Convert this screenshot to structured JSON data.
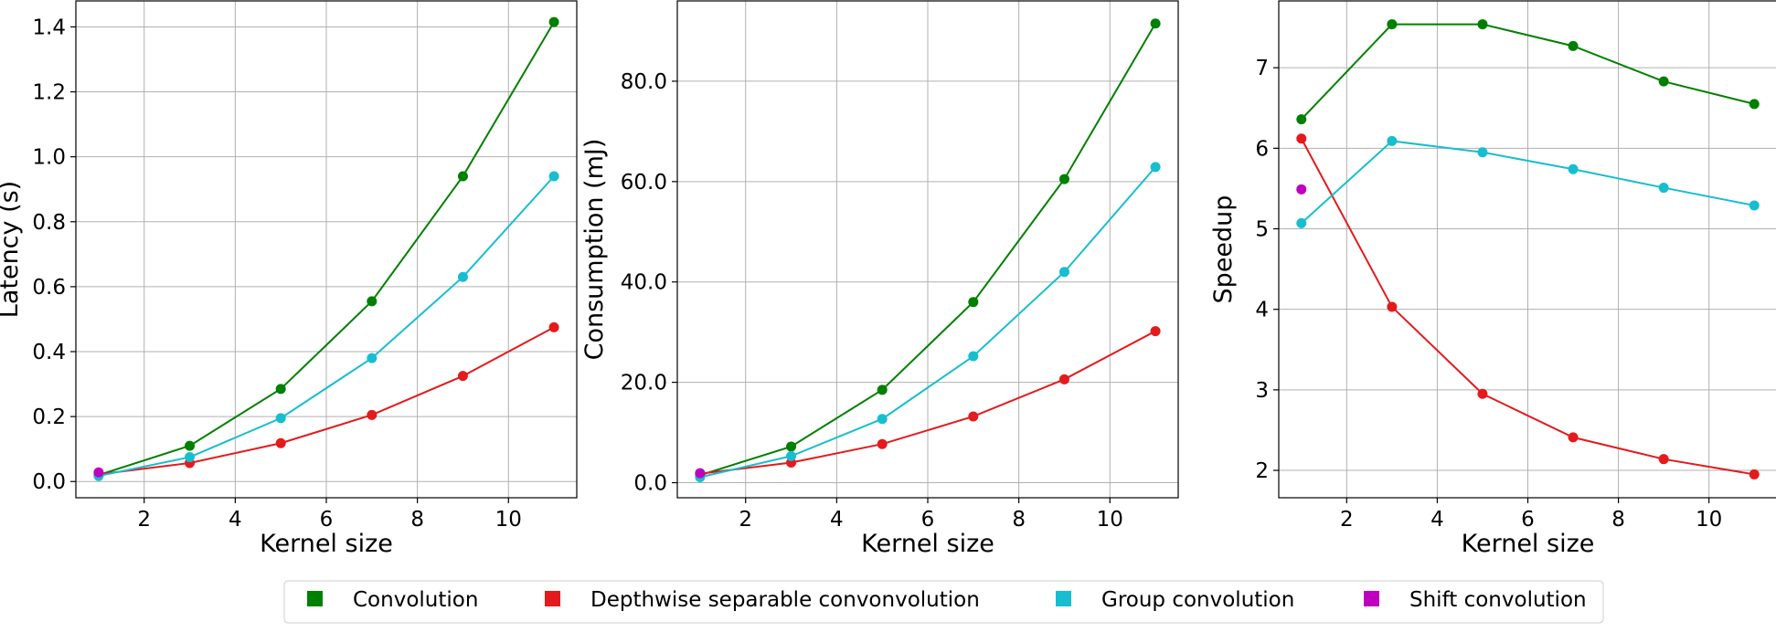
{
  "chart_data": [
    {
      "type": "line",
      "xlabel": "Kernel size",
      "ylabel": "Latency (s)",
      "xlim": [
        0.5,
        11.5
      ],
      "ylim": [
        -0.05,
        1.48
      ],
      "xticks": [
        2,
        4,
        6,
        8,
        10
      ],
      "xtick_labels": [
        "2",
        "4",
        "6",
        "8",
        "10"
      ],
      "yticks": [
        0.0,
        0.2,
        0.4,
        0.6,
        0.8,
        1.0,
        1.2,
        1.4
      ],
      "ytick_labels": [
        "0.0",
        "0.2",
        "0.4",
        "0.6",
        "0.8",
        "1.0",
        "1.2",
        "1.4"
      ],
      "grid": true,
      "series": [
        {
          "name": "Convolution",
          "color": "#008000",
          "x": [
            1,
            3,
            5,
            7,
            9,
            11
          ],
          "y": [
            0.02,
            0.11,
            0.285,
            0.555,
            0.94,
            1.415
          ]
        },
        {
          "name": "Depthwise separable convonvolution",
          "color": "#e41a1c",
          "x": [
            1,
            3,
            5,
            7,
            9,
            11
          ],
          "y": [
            0.022,
            0.057,
            0.118,
            0.205,
            0.325,
            0.475
          ]
        },
        {
          "name": "Group convolution",
          "color": "#17becf",
          "x": [
            1,
            3,
            5,
            7,
            9,
            11
          ],
          "y": [
            0.017,
            0.075,
            0.195,
            0.38,
            0.63,
            0.94
          ]
        },
        {
          "name": "Shift convolution",
          "color": "#bf00bf",
          "x": [
            1
          ],
          "y": [
            0.028
          ]
        }
      ]
    },
    {
      "type": "line",
      "xlabel": "Kernel size",
      "ylabel": "Consumption (mJ)",
      "xlim": [
        0.5,
        11.5
      ],
      "ylim": [
        -3,
        96
      ],
      "xticks": [
        2,
        4,
        6,
        8,
        10
      ],
      "xtick_labels": [
        "2",
        "4",
        "6",
        "8",
        "10"
      ],
      "yticks": [
        0,
        20,
        40,
        60,
        80
      ],
      "ytick_labels": [
        "0.0",
        "20.0",
        "40.0",
        "60.0",
        "80.0"
      ],
      "grid": true,
      "series": [
        {
          "name": "Convolution",
          "color": "#008000",
          "x": [
            1,
            3,
            5,
            7,
            9,
            11
          ],
          "y": [
            1.5,
            7.2,
            18.5,
            36.0,
            60.5,
            91.5
          ]
        },
        {
          "name": "Depthwise separable convonvolution",
          "color": "#e41a1c",
          "x": [
            1,
            3,
            5,
            7,
            9,
            11
          ],
          "y": [
            1.8,
            4.0,
            7.7,
            13.2,
            20.6,
            30.2
          ]
        },
        {
          "name": "Group convolution",
          "color": "#17becf",
          "x": [
            1,
            3,
            5,
            7,
            9,
            11
          ],
          "y": [
            1.1,
            5.3,
            12.7,
            25.2,
            42.0,
            62.9
          ]
        },
        {
          "name": "Shift convolution",
          "color": "#bf00bf",
          "x": [
            1
          ],
          "y": [
            1.9
          ]
        }
      ]
    },
    {
      "type": "line",
      "xlabel": "Kernel size",
      "ylabel": "Speedup",
      "xlim": [
        0.5,
        11.5
      ],
      "ylim": [
        1.66,
        7.83
      ],
      "xticks": [
        2,
        4,
        6,
        8,
        10
      ],
      "xtick_labels": [
        "2",
        "4",
        "6",
        "8",
        "10"
      ],
      "yticks": [
        2,
        3,
        4,
        5,
        6,
        7
      ],
      "ytick_labels": [
        "2",
        "3",
        "4",
        "5",
        "6",
        "7"
      ],
      "grid": true,
      "series": [
        {
          "name": "Convolution",
          "color": "#008000",
          "x": [
            1,
            3,
            5,
            7,
            9,
            11
          ],
          "y": [
            6.36,
            7.54,
            7.54,
            7.27,
            6.83,
            6.55
          ]
        },
        {
          "name": "Depthwise separable convonvolution",
          "color": "#e41a1c",
          "x": [
            1,
            3,
            5,
            7,
            9,
            11
          ],
          "y": [
            6.12,
            4.03,
            2.95,
            2.41,
            2.14,
            1.95
          ]
        },
        {
          "name": "Group convolution",
          "color": "#17becf",
          "x": [
            1,
            3,
            5,
            7,
            9,
            11
          ],
          "y": [
            5.07,
            6.09,
            5.95,
            5.74,
            5.51,
            5.29
          ]
        },
        {
          "name": "Shift convolution",
          "color": "#bf00bf",
          "x": [
            1
          ],
          "y": [
            5.49
          ]
        }
      ]
    }
  ],
  "legend": {
    "placement": "bottom-center",
    "items": [
      {
        "label": "Convolution",
        "color": "#008000"
      },
      {
        "label": "Depthwise separable convonvolution",
        "color": "#e41a1c"
      },
      {
        "label": "Group convolution",
        "color": "#17becf"
      },
      {
        "label": "Shift convolution",
        "color": "#bf00bf"
      }
    ]
  }
}
